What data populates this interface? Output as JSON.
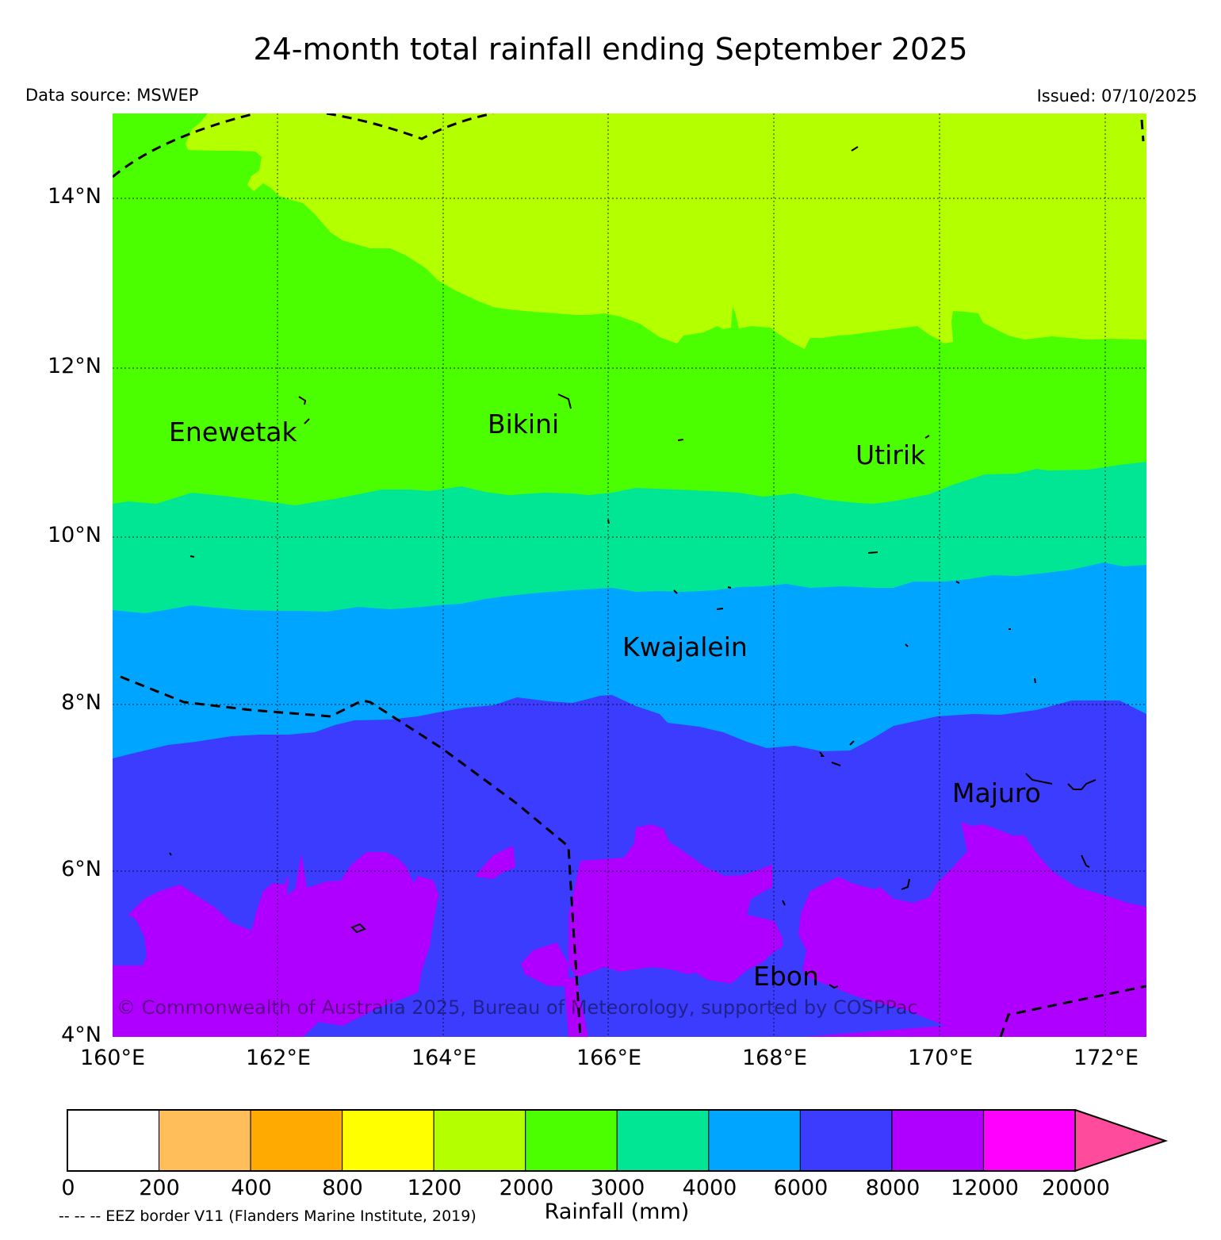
{
  "title": "24-month total rainfall ending September 2025",
  "data_source": "Data source: MSWEP",
  "issued": "Issued: 07/10/2025",
  "copyright": "© Commonwealth of Australia 2025, Bureau of Meteorology, supported by COSPPac",
  "eez_note": "-- -- -- EEZ border V11 (Flanders Marine Institute, 2019)",
  "places": {
    "enewetak": "Enewetak",
    "bikini": "Bikini",
    "utirik": "Utirik",
    "kwajalein": "Kwajalein",
    "majuro": "Majuro",
    "ebon": "Ebon"
  },
  "axes": {
    "lat_labels": [
      "14°N",
      "12°N",
      "10°N",
      "8°N",
      "6°N",
      "4°N"
    ],
    "lon_labels": [
      "160°E",
      "162°E",
      "164°E",
      "166°E",
      "168°E",
      "170°E",
      "172°E"
    ],
    "lat_range": [
      4,
      15
    ],
    "lon_range": [
      160,
      172.5
    ]
  },
  "colorbar": {
    "title": "Rainfall (mm)",
    "tick_labels": [
      "0",
      "200",
      "400",
      "800",
      "1200",
      "2000",
      "3000",
      "4000",
      "6000",
      "8000",
      "12000",
      "20000"
    ],
    "colors": [
      "#ffffff",
      "#ffbe5a",
      "#ffaa00",
      "#ffff00",
      "#b4ff00",
      "#4bff00",
      "#00e695",
      "#00a5ff",
      "#3c3cff",
      "#af00ff",
      "#ff00ff",
      "#ff4b9b"
    ]
  },
  "chart_data": {
    "type": "heatmap",
    "title": "24-month total rainfall ending September 2025",
    "units": "mm",
    "bands_dominant_north_to_south": [
      {
        "range_mm": "1200-2000",
        "color": "#b4ff00"
      },
      {
        "range_mm": "2000-3000",
        "color": "#4bff00"
      },
      {
        "range_mm": "3000-4000",
        "color": "#00e695"
      },
      {
        "range_mm": "4000-6000",
        "color": "#00a5ff"
      },
      {
        "range_mm": "6000-8000",
        "color": "#3c3cff"
      },
      {
        "range_mm": "8000-12000",
        "color": "#af00ff"
      }
    ]
  }
}
